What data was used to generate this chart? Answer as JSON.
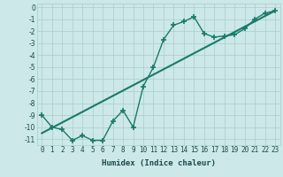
{
  "title": "",
  "xlabel": "Humidex (Indice chaleur)",
  "ylabel": "",
  "bg_color": "#cce8e8",
  "grid_color": "#aacccc",
  "line_color": "#1a7a6a",
  "curve_x": [
    0,
    1,
    2,
    3,
    4,
    5,
    6,
    7,
    8,
    9,
    10,
    11,
    12,
    13,
    14,
    15,
    16,
    17,
    18,
    19,
    20,
    21,
    22,
    23
  ],
  "curve_y": [
    -9.0,
    -10.0,
    -10.2,
    -11.1,
    -10.7,
    -11.1,
    -11.1,
    -9.5,
    -8.6,
    -10.0,
    -6.6,
    -5.0,
    -2.7,
    -1.5,
    -1.2,
    -0.8,
    -2.2,
    -2.5,
    -2.4,
    -2.3,
    -1.8,
    -1.0,
    -0.5,
    -0.3
  ],
  "line_x": [
    0,
    23
  ],
  "line_y": [
    -10.5,
    -0.3
  ],
  "xlim": [
    -0.5,
    23.5
  ],
  "ylim": [
    -11.5,
    0.3
  ],
  "xtick_labels": [
    "0",
    "1",
    "2",
    "3",
    "4",
    "5",
    "6",
    "7",
    "8",
    "9",
    "10",
    "11",
    "12",
    "13",
    "14",
    "15",
    "16",
    "17",
    "18",
    "19",
    "20",
    "21",
    "22",
    "23"
  ],
  "ytick_vals": [
    0,
    -1,
    -2,
    -3,
    -4,
    -5,
    -6,
    -7,
    -8,
    -9,
    -10,
    -11
  ],
  "marker": "+",
  "marker_size": 4,
  "line_width": 1.0,
  "font_size_axis": 6.5,
  "font_size_tick": 5.5
}
